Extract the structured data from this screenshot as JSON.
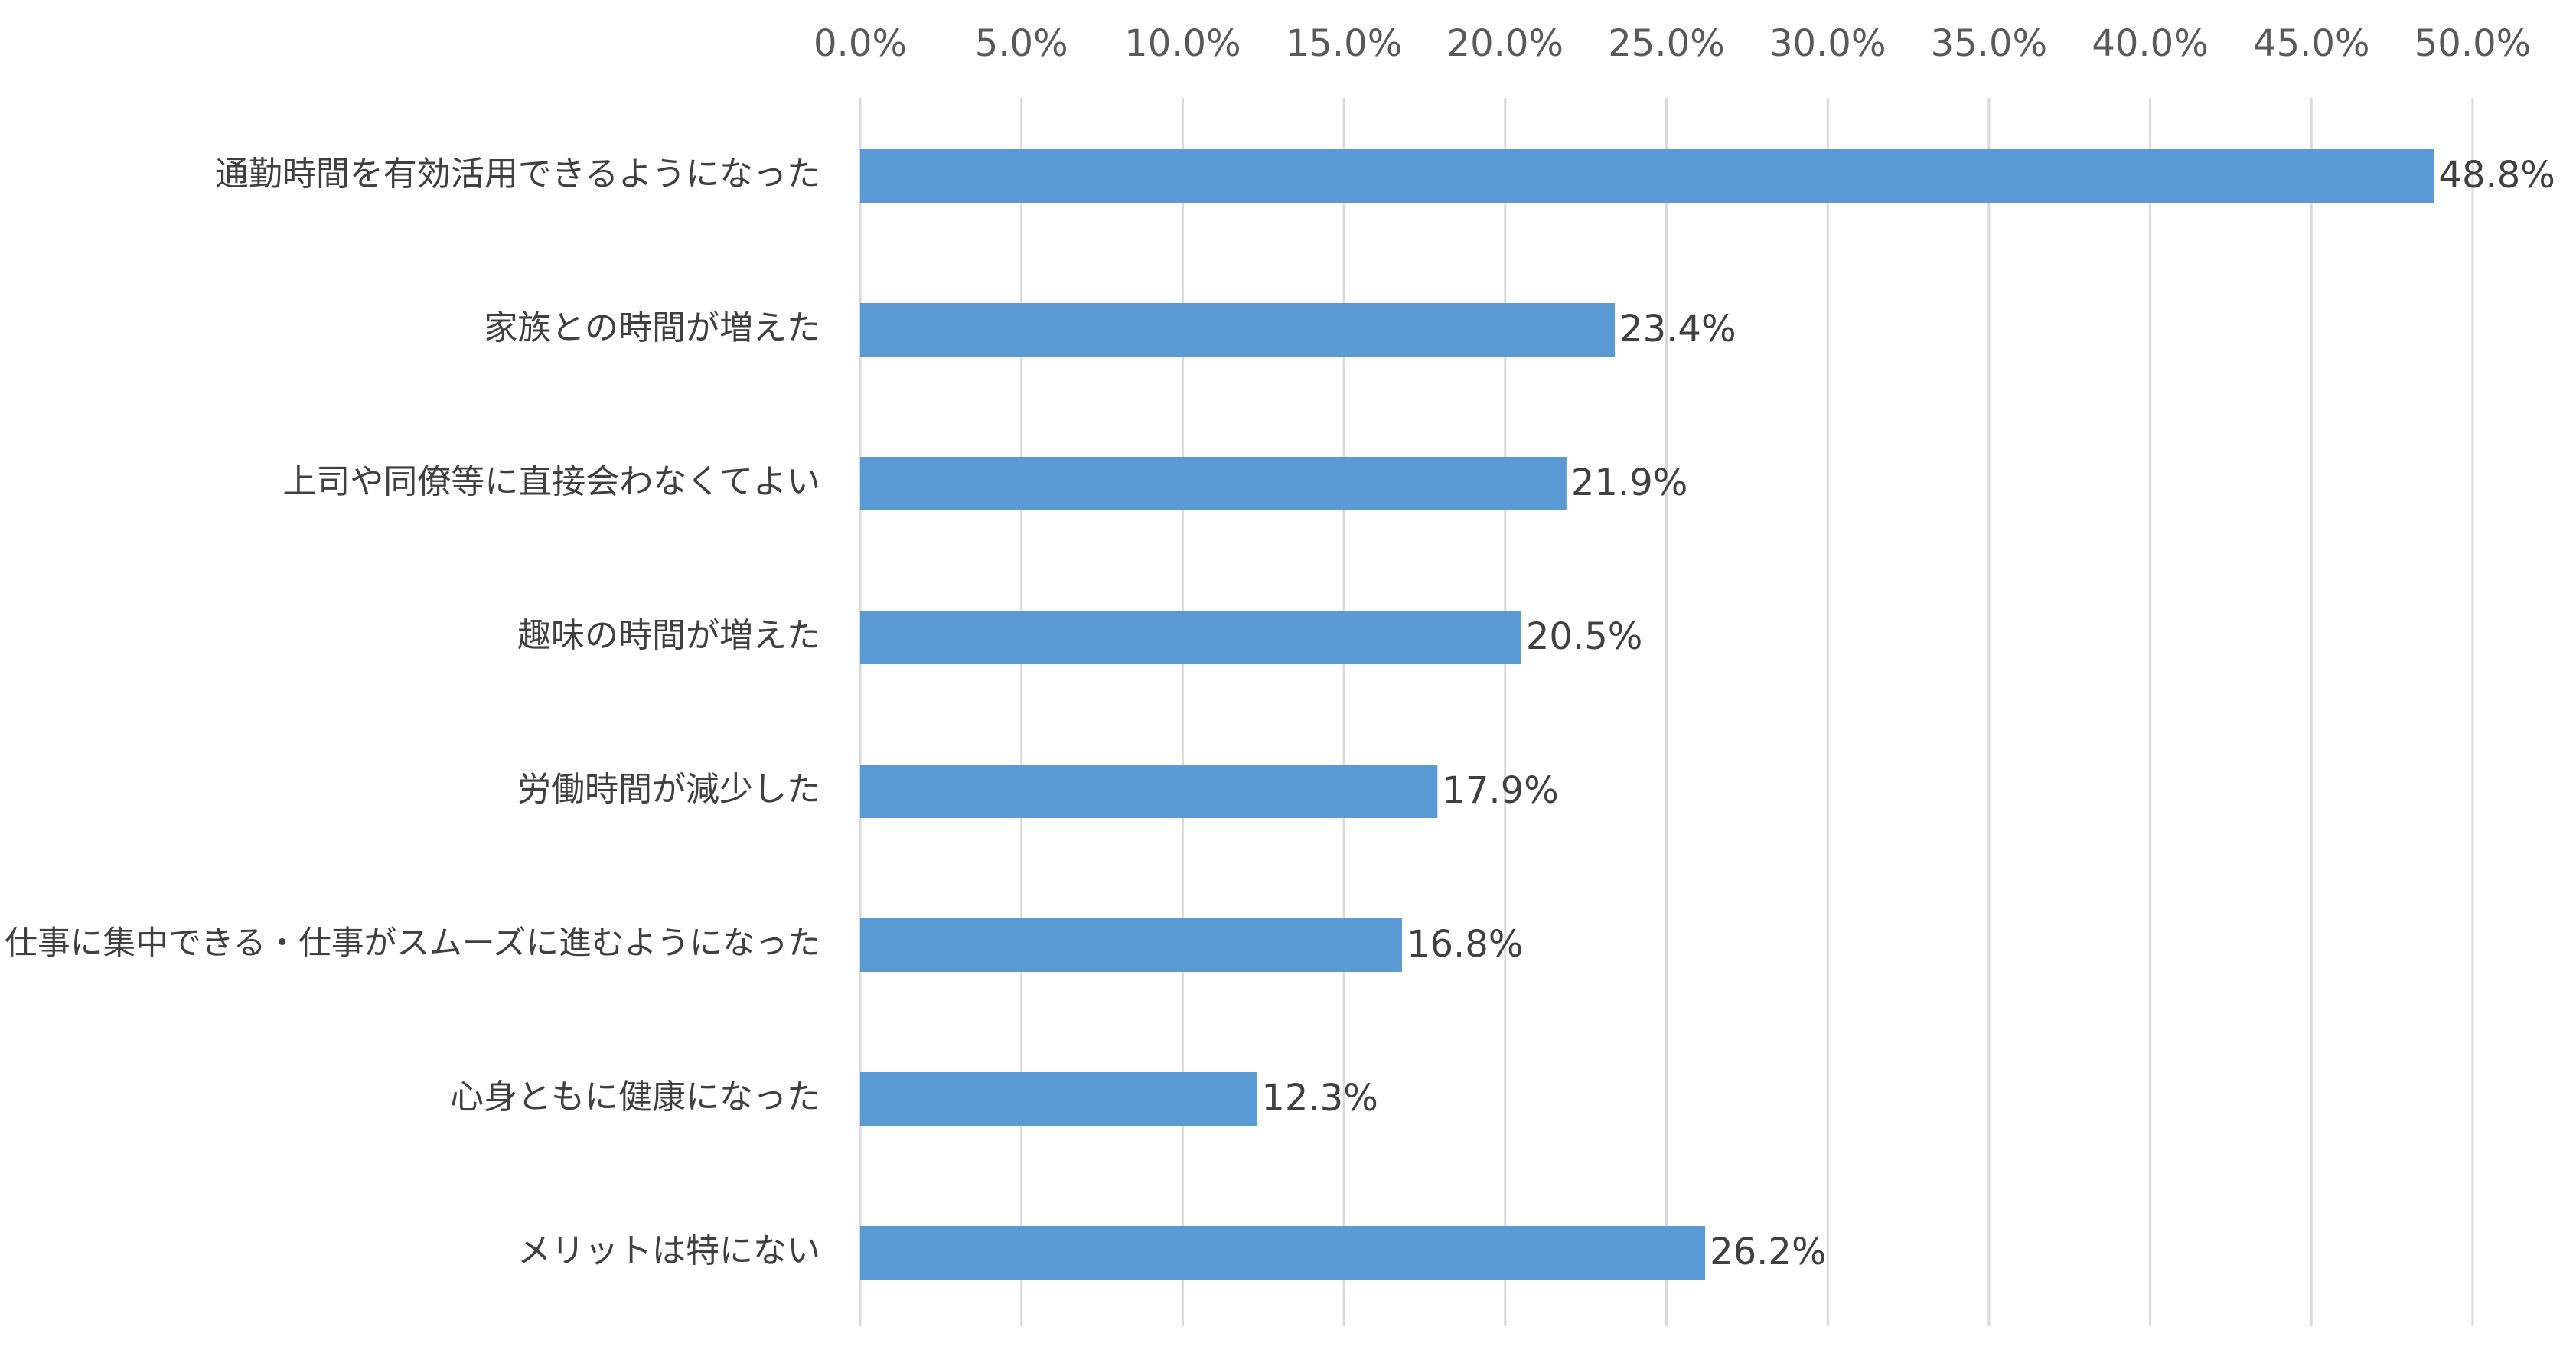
{
  "chart_data": {
    "type": "bar",
    "orientation": "horizontal",
    "categories": [
      "通勤時間を有効活用できるようになった",
      "家族との時間が増えた",
      "上司や同僚等に直接会わなくてよい",
      "趣味の時間が増えた",
      "労働時間が減少した",
      "仕事に集中できる・仕事がスムーズに進むようになった",
      "心身ともに健康になった",
      "メリットは特にない"
    ],
    "values": [
      48.8,
      23.4,
      21.9,
      20.5,
      17.9,
      16.8,
      12.3,
      26.2
    ],
    "data_labels": [
      "48.8%",
      "23.4%",
      "21.9%",
      "20.5%",
      "17.9%",
      "16.8%",
      "12.3%",
      "26.2%"
    ],
    "x_ticks": [
      "0.0%",
      "5.0%",
      "10.0%",
      "15.0%",
      "20.0%",
      "25.0%",
      "30.0%",
      "35.0%",
      "40.0%",
      "45.0%",
      "50.0%"
    ],
    "xlim": [
      0,
      50
    ],
    "axis_position": "top",
    "grid": true,
    "legend": "none",
    "bar_color": "#5b9bd5"
  }
}
